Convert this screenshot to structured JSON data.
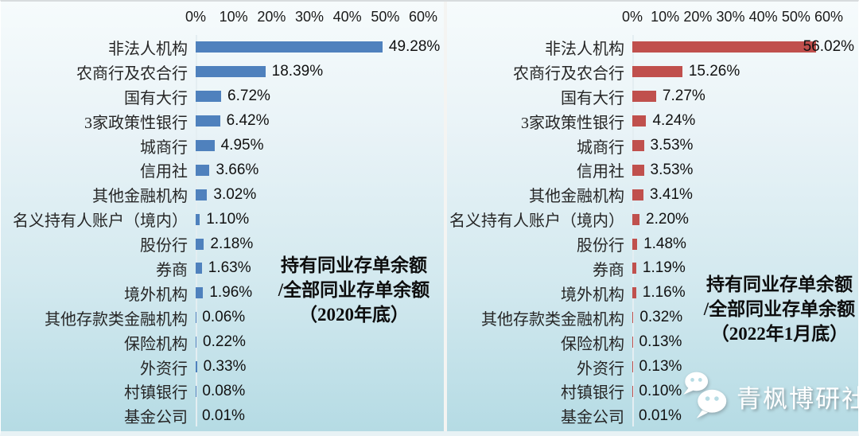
{
  "page": {
    "watermark": {
      "text": "青枫博研社",
      "icon": "wechat-icon"
    }
  },
  "colors": {
    "left_bar": "#4f81bd",
    "right_bar": "#c0504d",
    "background_top": "#f6fbfc",
    "background_bottom": "#b5dbe4"
  },
  "chart_data": [
    {
      "type": "bar",
      "orientation": "horizontal",
      "title": "持有同业存单余额/全部同业存单余额（2020年底）",
      "title_lines": [
        "持有同业存单余额",
        "/全部同业存单余额",
        "（2020年底）"
      ],
      "bar_color": "#4f81bd",
      "axis": {
        "position": "top",
        "min": 0,
        "max": 60,
        "unit": "%",
        "ticks": [
          "0%",
          "10%",
          "20%",
          "30%",
          "40%",
          "50%",
          "60%"
        ]
      },
      "grid": false,
      "legend": false,
      "categories": [
        "非法人机构",
        "农商行及农合行",
        "国有大行",
        "3家政策性银行",
        "城商行",
        "信用社",
        "其他金融机构",
        "名义持有人账户（境内）",
        "股份行",
        "券商",
        "境外机构",
        "其他存款类金融机构",
        "保险机构",
        "外资行",
        "村镇银行",
        "基金公司"
      ],
      "values": [
        49.28,
        18.39,
        6.72,
        6.42,
        4.95,
        3.66,
        3.02,
        1.1,
        2.18,
        1.63,
        1.96,
        0.06,
        0.22,
        0.33,
        0.08,
        0.01
      ],
      "labels": [
        "49.28%",
        "18.39%",
        "6.72%",
        "6.42%",
        "4.95%",
        "3.66%",
        "3.02%",
        "1.10%",
        "2.18%",
        "1.63%",
        "1.96%",
        "0.06%",
        "0.22%",
        "0.33%",
        "0.08%",
        "0.01%"
      ]
    },
    {
      "type": "bar",
      "orientation": "horizontal",
      "title": "持有同业存单余额/全部同业存单余额（2022年1月底）",
      "title_lines": [
        "持有同业存单余额",
        "/全部同业存单余额",
        "（2022年1月底）"
      ],
      "bar_color": "#c0504d",
      "axis": {
        "position": "top",
        "min": 0,
        "max": 60,
        "unit": "%",
        "ticks": [
          "0%",
          "10%",
          "20%",
          "30%",
          "40%",
          "50%",
          "60%"
        ]
      },
      "grid": false,
      "legend": false,
      "categories": [
        "非法人机构",
        "农商行及农合行",
        "国有大行",
        "3家政策性银行",
        "城商行",
        "信用社",
        "其他金融机构",
        "名义持有人账户（境内）",
        "股份行",
        "券商",
        "境外机构",
        "其他存款类金融机构",
        "保险机构",
        "外资行",
        "村镇银行",
        "基金公司"
      ],
      "values": [
        56.02,
        15.26,
        7.27,
        4.24,
        3.53,
        3.53,
        3.41,
        2.2,
        1.48,
        1.19,
        1.16,
        0.32,
        0.13,
        0.13,
        0.1,
        0.01
      ],
      "labels": [
        "56.02%",
        "15.26%",
        "7.27%",
        "4.24%",
        "3.53%",
        "3.53%",
        "3.41%",
        "2.20%",
        "1.48%",
        "1.19%",
        "1.16%",
        "0.32%",
        "0.13%",
        "0.13%",
        "0.10%",
        "0.01%"
      ]
    }
  ]
}
